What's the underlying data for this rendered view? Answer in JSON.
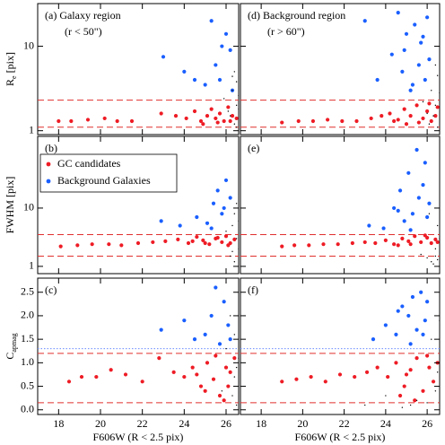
{
  "chart_data": [
    {
      "type": "scatter",
      "annotations": [
        "(a) Galaxy region",
        "(r < 50\")"
      ],
      "log": true,
      "xlim": [
        17,
        26.6
      ],
      "ylim": [
        0.9,
        32
      ],
      "ylabel": "R",
      "ylabel_sub": "e",
      "ylabel_unit": "[pix]",
      "yticks": [
        1,
        10
      ],
      "hlines": [
        {
          "value": 1.1,
          "color": "#e0302e",
          "style": "dashed"
        },
        {
          "value": 2.3,
          "color": "#e0302e",
          "style": "dashed"
        }
      ],
      "series": [
        {
          "color": "#ee1c25",
          "x": [
            18.0,
            18.6,
            19.4,
            20.2,
            20.8,
            21.5,
            22.9,
            23.6,
            24.1,
            24.5,
            24.8,
            25.1,
            25.3,
            25.5,
            25.7,
            25.9,
            26.1,
            26.3,
            26.5,
            24.9,
            25.6,
            26.2
          ],
          "y": [
            1.3,
            1.3,
            1.35,
            1.4,
            1.3,
            1.3,
            1.6,
            1.5,
            1.4,
            1.7,
            1.3,
            1.5,
            1.8,
            1.4,
            1.6,
            1.3,
            1.9,
            1.5,
            1.4,
            1.2,
            1.25,
            1.3
          ]
        },
        {
          "color": "#1a5fff",
          "x": [
            23.0,
            24.0,
            24.5,
            25.0,
            25.3,
            25.5,
            25.7,
            25.8,
            26.0,
            26.2,
            26.3
          ],
          "y": [
            7.5,
            5,
            4,
            3.5,
            20,
            6,
            4,
            10,
            14,
            9,
            3
          ]
        },
        {
          "color": "#000000",
          "x": [
            26.3,
            26.5,
            26.4,
            26.6,
            26.2,
            26.5,
            26.4,
            26.6,
            26.3,
            26.5,
            25.9,
            26.1
          ],
          "y": [
            3,
            2,
            5,
            1.8,
            1.5,
            3.8,
            1.2,
            2.6,
            4.4,
            1.1,
            2.4,
            1.7
          ]
        }
      ]
    },
    {
      "type": "scatter",
      "annotations": [
        "(d) Background region",
        "(r > 60\")"
      ],
      "log": true,
      "xlim": [
        17,
        26.6
      ],
      "ylim": [
        0.9,
        32
      ],
      "hlines": [
        {
          "value": 1.1,
          "color": "#e0302e",
          "style": "dashed"
        },
        {
          "value": 2.3,
          "color": "#e0302e",
          "style": "dashed"
        }
      ],
      "series": [
        {
          "color": "#ee1c25",
          "x": [
            19.0,
            19.8,
            20.5,
            21.2,
            21.9,
            22.6,
            23.3,
            23.8,
            24.2,
            24.6,
            24.9,
            25.2,
            25.5,
            25.8,
            26.0,
            26.2,
            26.4,
            25.0,
            25.6,
            26.1,
            26.5,
            24.4
          ],
          "y": [
            1.25,
            1.3,
            1.3,
            1.35,
            1.3,
            1.3,
            1.4,
            1.5,
            1.6,
            1.35,
            1.8,
            1.5,
            2.0,
            1.4,
            1.7,
            1.3,
            1.5,
            1.2,
            1.25,
            2.1,
            1.9,
            1.3
          ]
        },
        {
          "color": "#1a5fff",
          "x": [
            23.0,
            23.6,
            24.3,
            24.6,
            24.8,
            25.0,
            25.2,
            25.4,
            25.6,
            25.7,
            25.9,
            26.0,
            26.1,
            25.3,
            24.9,
            25.8
          ],
          "y": [
            20,
            4,
            8,
            25,
            5,
            14,
            3,
            18,
            6,
            11,
            4,
            22,
            7,
            3.5,
            9,
            13
          ]
        },
        {
          "color": "#000000",
          "x": [
            26.2,
            26.4,
            26.5,
            26.3,
            26.6,
            26.1,
            26.4,
            26.5,
            25.8,
            26.0
          ],
          "y": [
            3,
            2,
            4.5,
            1.5,
            2.8,
            1.2,
            6,
            1.1,
            2.2,
            1.6
          ]
        }
      ]
    },
    {
      "type": "scatter",
      "annotations": [
        "(b)"
      ],
      "log": true,
      "xlim": [
        17,
        26.6
      ],
      "ylim": [
        0.75,
        170
      ],
      "ylabel": "FWHM [pix]",
      "yticks": [
        1,
        10
      ],
      "hlines": [
        {
          "value": 1.5,
          "color": "#e0302e",
          "style": "dashed"
        },
        {
          "value": 3.5,
          "color": "#e0302e",
          "style": "dashed"
        }
      ],
      "series": [
        {
          "name": "GC candidates",
          "color": "#ee1c25",
          "x": [
            18.1,
            18.9,
            19.6,
            20.4,
            21.0,
            21.8,
            22.5,
            23.1,
            23.7,
            24.2,
            24.6,
            24.9,
            25.2,
            25.5,
            25.8,
            26.0,
            26.2,
            26.4,
            24.4,
            25.0,
            25.6,
            26.1
          ],
          "y": [
            2.2,
            2.3,
            2.4,
            2.4,
            2.3,
            2.5,
            2.6,
            2.7,
            2.9,
            2.5,
            3.2,
            2.8,
            2.4,
            3.0,
            2.6,
            3.3,
            2.5,
            2.9,
            2.7,
            2.5,
            3.1,
            2.3
          ]
        },
        {
          "name": "Background Galaxies",
          "color": "#1a5fff",
          "x": [
            22.9,
            23.8,
            24.6,
            25.1,
            25.4,
            25.6,
            25.8,
            26.0,
            26.2,
            25.3,
            25.9
          ],
          "y": [
            6,
            5,
            7,
            5.5,
            12,
            20,
            8,
            30,
            15,
            4.5,
            10
          ]
        },
        {
          "color": "#000000",
          "x": [
            26.3,
            26.5,
            26.4,
            26.6,
            26.2,
            26.5,
            26.4,
            26.0,
            26.6,
            26.3
          ],
          "y": [
            5,
            3,
            8,
            2,
            1.5,
            12,
            1.2,
            4,
            6,
            1.8
          ]
        }
      ]
    },
    {
      "type": "scatter",
      "annotations": [
        "(e)"
      ],
      "log": true,
      "xlim": [
        17,
        26.6
      ],
      "ylim": [
        0.75,
        170
      ],
      "hlines": [
        {
          "value": 1.5,
          "color": "#e0302e",
          "style": "dashed"
        },
        {
          "value": 3.5,
          "color": "#e0302e",
          "style": "dashed"
        }
      ],
      "series": [
        {
          "color": "#ee1c25",
          "x": [
            19.0,
            19.6,
            20.3,
            21.0,
            21.7,
            22.4,
            23.0,
            23.5,
            24.0,
            24.4,
            24.8,
            25.1,
            25.4,
            25.7,
            26.0,
            26.2,
            26.4,
            24.6,
            25.2,
            25.9,
            26.5
          ],
          "y": [
            2.2,
            2.3,
            2.3,
            2.4,
            2.4,
            2.5,
            2.6,
            2.5,
            2.8,
            2.4,
            3.0,
            2.7,
            3.3,
            2.6,
            3.1,
            2.5,
            2.9,
            2.3,
            2.4,
            3.4,
            2.6
          ]
        },
        {
          "color": "#1a5fff",
          "x": [
            23.2,
            23.9,
            24.4,
            24.7,
            24.9,
            25.1,
            25.3,
            25.5,
            25.6,
            25.8,
            26.0,
            26.1,
            25.2,
            24.6,
            25.9
          ],
          "y": [
            5,
            4.5,
            10,
            20,
            6,
            40,
            8,
            100,
            15,
            25,
            7,
            12,
            4.2,
            9,
            60
          ]
        },
        {
          "color": "#000000",
          "x": [
            26.2,
            26.4,
            26.5,
            26.3,
            26.6,
            26.1,
            26.5,
            25.7,
            26.4,
            26.0
          ],
          "y": [
            1.2,
            1.5,
            5,
            1.1,
            3,
            8,
            1.3,
            1.6,
            2,
            1.4
          ]
        }
      ]
    },
    {
      "type": "scatter",
      "annotations": [
        "(c)"
      ],
      "log": false,
      "xlim": [
        17,
        26.6
      ],
      "ylim": [
        -0.1,
        2.8
      ],
      "ylabel": "C",
      "ylabel_sub": "apmag",
      "yticks": [
        {
          "value": 0,
          "label": "0.0"
        },
        0.5,
        {
          "value": 1,
          "label": "1.0"
        },
        1.5,
        {
          "value": 2,
          "label": "2.0"
        },
        2.5
      ],
      "xticks": [
        18,
        20,
        22,
        24,
        26
      ],
      "xlabel": "F606W (R < 2.5 pix)",
      "hlines": [
        {
          "value": 0.15,
          "color": "#e0302e",
          "style": "dashed"
        },
        {
          "value": 1.2,
          "color": "#e0302e",
          "style": "dashed"
        },
        {
          "value": 1.3,
          "color": "#6a8cff",
          "style": "dotted"
        }
      ],
      "series": [
        {
          "color": "#ee1c25",
          "x": [
            18.5,
            19.1,
            19.8,
            20.5,
            21.2,
            22.0,
            22.8,
            23.5,
            24.0,
            24.4,
            24.8,
            25.1,
            25.4,
            25.7,
            26.0,
            26.2,
            26.4,
            25.0,
            25.5,
            26.1,
            24.6,
            25.9
          ],
          "y": [
            0.6,
            0.7,
            0.7,
            0.85,
            0.75,
            0.6,
            1.1,
            0.8,
            0.7,
            0.9,
            0.5,
            1.0,
            0.65,
            0.3,
            0.9,
            0.8,
            1.1,
            0.4,
            1.15,
            0.5,
            0.75,
            0.2
          ]
        },
        {
          "color": "#1a5fff",
          "x": [
            22.9,
            24.0,
            24.5,
            25.0,
            25.3,
            25.5,
            25.7,
            25.9,
            26.1,
            26.2
          ],
          "y": [
            1.7,
            1.9,
            1.5,
            1.6,
            2.0,
            2.6,
            1.4,
            2.3,
            1.8,
            1.5
          ]
        },
        {
          "color": "#000000",
          "x": [
            26.3,
            26.5,
            26.4,
            26.6,
            26.2,
            26.5,
            26.0,
            26.4,
            26.6,
            25.8
          ],
          "y": [
            0.3,
            0.9,
            1.6,
            0.5,
            2.0,
            0.1,
            1.3,
            0.7,
            1.1,
            0.4
          ]
        }
      ]
    },
    {
      "type": "scatter",
      "annotations": [
        "(f)"
      ],
      "log": false,
      "xlim": [
        17,
        26.6
      ],
      "ylim": [
        -0.1,
        2.8
      ],
      "xticks": [
        18,
        20,
        22,
        24,
        26
      ],
      "xlabel": "F606W (R < 2.5 pix)",
      "hlines": [
        {
          "value": 0.15,
          "color": "#e0302e",
          "style": "dashed"
        },
        {
          "value": 1.2,
          "color": "#e0302e",
          "style": "dashed"
        },
        {
          "value": 1.3,
          "color": "#6a8cff",
          "style": "dotted"
        }
      ],
      "series": [
        {
          "color": "#ee1c25",
          "x": [
            19.0,
            19.7,
            20.4,
            21.1,
            21.8,
            22.5,
            23.1,
            23.6,
            24.1,
            24.5,
            24.9,
            25.2,
            25.5,
            25.8,
            26.1,
            26.3,
            26.5,
            24.7,
            25.4,
            26.0,
            25.0
          ],
          "y": [
            0.6,
            0.65,
            0.7,
            0.6,
            0.75,
            0.7,
            0.8,
            0.9,
            0.7,
            1.0,
            0.5,
            0.85,
            1.1,
            0.4,
            0.9,
            0.6,
            1.0,
            0.3,
            0.2,
            1.15,
            0.75
          ]
        },
        {
          "color": "#1a5fff",
          "x": [
            23.4,
            24.0,
            24.5,
            24.8,
            25.1,
            25.3,
            25.5,
            25.7,
            25.9,
            26.0,
            25.2,
            24.6,
            25.8
          ],
          "y": [
            1.5,
            1.8,
            1.6,
            2.2,
            2.0,
            2.4,
            1.7,
            2.5,
            1.9,
            2.3,
            1.4,
            2.1,
            1.6
          ]
        },
        {
          "color": "#000000",
          "x": [
            23.0,
            24.0,
            24.8,
            25.5,
            26.2,
            26.4,
            26.6,
            26.0,
            26.5,
            25.2
          ],
          "y": [
            0.1,
            0.3,
            0.05,
            0.2,
            1.5,
            0.4,
            1.9,
            0.15,
            0.8,
            0.1
          ]
        }
      ]
    }
  ]
}
